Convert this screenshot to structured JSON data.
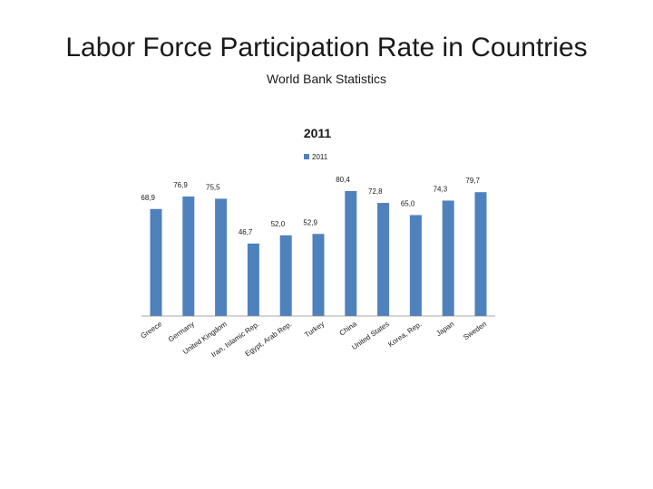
{
  "slide": {
    "title": "Labor Force Participation Rate in Countries",
    "subtitle": "World Bank Statistics"
  },
  "chart_data": {
    "type": "bar",
    "title": "2011",
    "legend": {
      "label": "2011",
      "position": "top"
    },
    "categories": [
      "Greece",
      "Germany",
      "United Kingdom",
      "Iran, Islamic Rep.",
      "Egypt, Arab Rep.",
      "Turkey",
      "China",
      "United States",
      "Korea, Rep.",
      "Japan",
      "Sweden"
    ],
    "value_labels": [
      "68,9",
      "76,9",
      "75,5",
      "46,7",
      "52,0",
      "52,9",
      "80,4",
      "72,8",
      "65,0",
      "74,3",
      "79,7"
    ],
    "series": [
      {
        "name": "2011",
        "values": [
          68.9,
          76.9,
          75.5,
          46.7,
          52.0,
          52.9,
          80.4,
          72.8,
          65.0,
          74.3,
          79.7
        ]
      }
    ],
    "xlabel": "",
    "ylabel": "",
    "ylim": [
      0,
      90
    ],
    "grid": false,
    "colors": {
      "bar": "#4f81bd",
      "axis": "#8c8c8c"
    }
  }
}
